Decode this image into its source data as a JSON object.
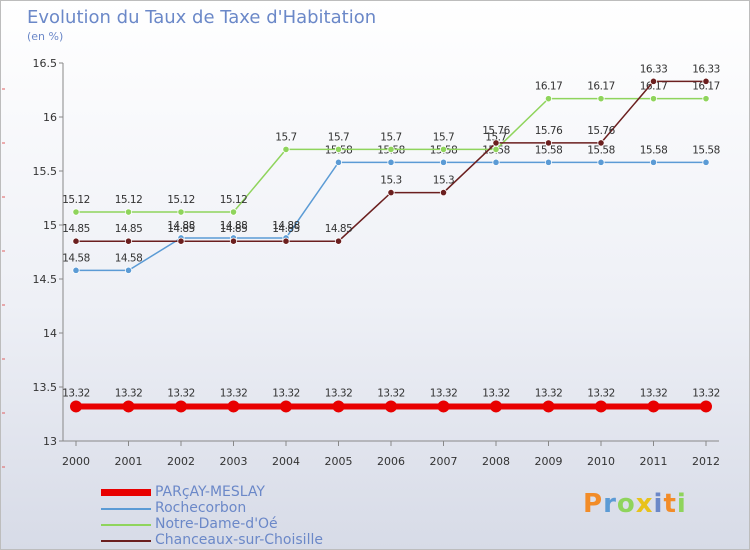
{
  "header": {
    "title": "Evolution du Taux de Taxe d'Habitation",
    "subtitle": "(en %)"
  },
  "chart_data": {
    "type": "line",
    "title": "Evolution du Taux de Taxe d'Habitation",
    "ylabel": "(en %)",
    "xlabel": "",
    "x": [
      "2000",
      "2001",
      "2002",
      "2003",
      "2004",
      "2005",
      "2006",
      "2007",
      "2008",
      "2009",
      "2010",
      "2011",
      "2012"
    ],
    "ylim": [
      13,
      16.5
    ],
    "yticks": [
      "13",
      "13.5",
      "14",
      "14.5",
      "15",
      "15.5",
      "16",
      "16.5"
    ],
    "grid": false,
    "legend": "bottom-left",
    "series": [
      {
        "name": "PARçAY-MESLAY",
        "color": "#e80000",
        "values": [
          13.32,
          13.32,
          13.32,
          13.32,
          13.32,
          13.32,
          13.32,
          13.32,
          13.32,
          13.32,
          13.32,
          13.32,
          13.32
        ],
        "labels": [
          "13.32",
          "13.32",
          "13.32",
          "13.32",
          "13.32",
          "13.32",
          "13.32",
          "13.32",
          "13.32",
          "13.32",
          "13.32",
          "13.32",
          "13.32"
        ]
      },
      {
        "name": "Rochecorbon",
        "color": "#5b9bd5",
        "values": [
          14.58,
          14.58,
          14.88,
          14.88,
          14.88,
          15.58,
          15.58,
          15.58,
          15.58,
          15.58,
          15.58,
          15.58,
          15.58
        ],
        "labels": [
          "14.58",
          "14.58",
          "14.88",
          "14.88",
          "14.88",
          "15.58",
          "15.58",
          "15.58",
          "15.58",
          "15.58",
          "15.58",
          "15.58",
          "15.58"
        ]
      },
      {
        "name": "Notre-Dame-d'Oé",
        "color": "#8fd45c",
        "values": [
          15.12,
          15.12,
          15.12,
          15.12,
          15.7,
          15.7,
          15.7,
          15.7,
          15.7,
          16.17,
          16.17,
          16.17,
          16.17
        ],
        "labels": [
          "15.12",
          "15.12",
          "15.12",
          "15.12",
          "15.7",
          "15.7",
          "15.7",
          "15.7",
          "15.7",
          "16.17",
          "16.17",
          "16.17",
          "16.17"
        ]
      },
      {
        "name": "Chanceaux-sur-Choisille",
        "color": "#6b1f1f",
        "values": [
          14.85,
          14.85,
          14.85,
          14.85,
          14.85,
          14.85,
          15.3,
          15.3,
          15.76,
          15.76,
          15.76,
          16.33,
          16.33
        ],
        "labels": [
          "14.85",
          "14.85",
          "14.85",
          "14.85",
          "14.85",
          "14.85",
          "15.3",
          "15.3",
          "15.76",
          "15.76",
          "15.76",
          "16.33",
          "16.33"
        ]
      }
    ]
  },
  "legend": {
    "items": [
      {
        "label": "PARçAY-MESLAY",
        "color": "#e80000"
      },
      {
        "label": "Rochecorbon",
        "color": "#5b9bd5"
      },
      {
        "label": "Notre-Dame-d'Oé",
        "color": "#8fd45c"
      },
      {
        "label": "Chanceaux-sur-Choisille",
        "color": "#6b1f1f"
      }
    ]
  },
  "logo": {
    "text": "Proxiti",
    "letters": [
      "P",
      "r",
      "o",
      "x",
      "i",
      "t",
      "i"
    ],
    "colors": [
      "#f28c28",
      "#5b9bd5",
      "#8fd45c",
      "#e8c21c",
      "#6b88c8",
      "#f28c28",
      "#8fd45c"
    ]
  }
}
